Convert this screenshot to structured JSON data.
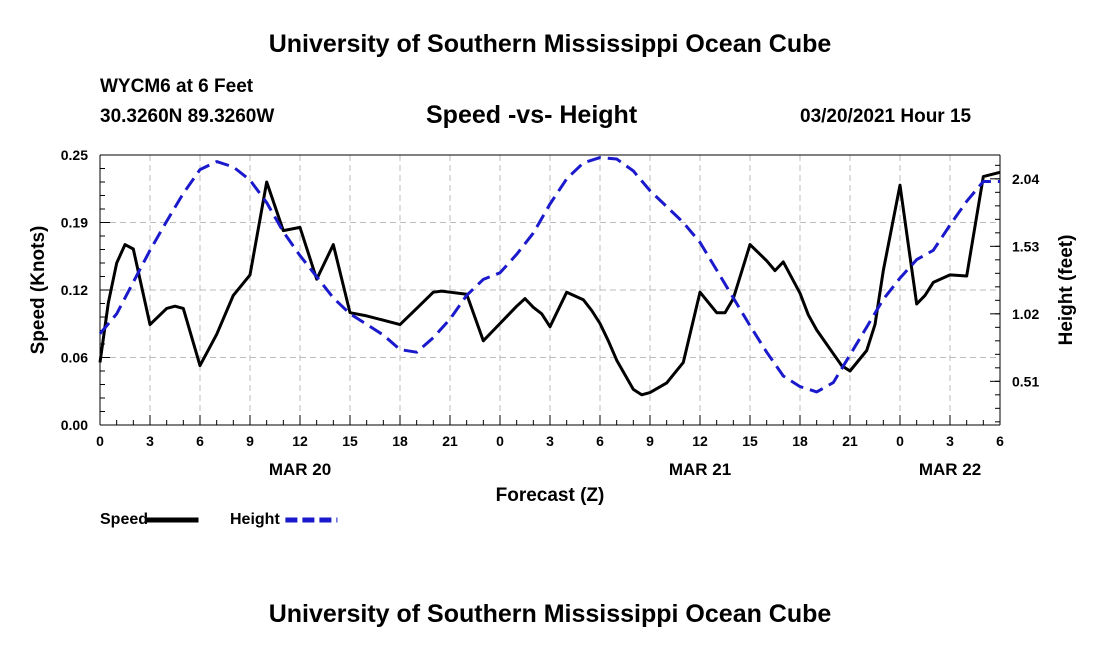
{
  "header": {
    "title": "University of Southern Mississippi Ocean Cube",
    "station": "WYCM6 at 6 Feet",
    "coords": "30.3260N 89.3260W",
    "datetime": "03/20/2021 Hour 15"
  },
  "footer": {
    "title": "University of Southern Mississippi Ocean Cube"
  },
  "chart_data": {
    "type": "line",
    "title": "Speed -vs- Height",
    "xlabel": "Forecast (Z)",
    "ylabel_left": "Speed (Knots)",
    "ylabel_right": "Height (feet)",
    "x_unit": "hours from MAR 20 00Z",
    "xlim": [
      0,
      54
    ],
    "ylim_left": [
      0,
      0.25
    ],
    "ylim_right": [
      0.18,
      2.22
    ],
    "x_tick_labels": [
      "0",
      "3",
      "6",
      "9",
      "12",
      "15",
      "18",
      "21",
      "0",
      "3",
      "6",
      "9",
      "12",
      "15",
      "18",
      "21",
      "0",
      "3",
      "6"
    ],
    "left_ticks": [
      "0.00",
      "0.06",
      "0.12",
      "0.19",
      "0.25"
    ],
    "left_tick_values": [
      0.0,
      0.0625,
      0.125,
      0.1875,
      0.25
    ],
    "right_ticks": [
      "0.51",
      "1.02",
      "1.53",
      "2.04"
    ],
    "right_tick_values": [
      0.51,
      1.02,
      1.53,
      2.04
    ],
    "dates": [
      {
        "label": "MAR 20",
        "x": 12
      },
      {
        "label": "MAR 21",
        "x": 36
      },
      {
        "label": "MAR 22",
        "x": 51
      }
    ],
    "grid": true,
    "legend": [
      {
        "name": "Speed",
        "color": "#000000",
        "style": "solid"
      },
      {
        "name": "Height",
        "color": "#1a1acc",
        "style": "dashed"
      }
    ],
    "series": [
      {
        "name": "Speed",
        "axis": "left",
        "color": "#000000",
        "style": "solid",
        "x": [
          0,
          0.5,
          1,
          1.5,
          2,
          3,
          4,
          4.5,
          5,
          6,
          7,
          8,
          9,
          10,
          11,
          12,
          13,
          14,
          15,
          16,
          17,
          18,
          19,
          20,
          20.5,
          21,
          22,
          23,
          24,
          25,
          25.5,
          26,
          26.5,
          27,
          28,
          29,
          29.5,
          30,
          30.5,
          31,
          32,
          32.5,
          33,
          34,
          35,
          36,
          37,
          37.5,
          38,
          39,
          40,
          40.5,
          41,
          42,
          42.5,
          43,
          44,
          44.5,
          45,
          46,
          46.5,
          47,
          48,
          48.5,
          49,
          49.5,
          50,
          51,
          52,
          53,
          54
        ],
        "values": [
          0.058,
          0.113,
          0.15,
          0.167,
          0.163,
          0.093,
          0.108,
          0.11,
          0.108,
          0.055,
          0.084,
          0.12,
          0.139,
          0.225,
          0.18,
          0.183,
          0.135,
          0.167,
          0.104,
          0.101,
          0.097,
          0.093,
          0.108,
          0.123,
          0.124,
          0.123,
          0.121,
          0.078,
          0.094,
          0.11,
          0.117,
          0.109,
          0.103,
          0.091,
          0.123,
          0.116,
          0.106,
          0.094,
          0.078,
          0.06,
          0.033,
          0.028,
          0.03,
          0.039,
          0.058,
          0.123,
          0.104,
          0.104,
          0.117,
          0.167,
          0.152,
          0.143,
          0.151,
          0.122,
          0.102,
          0.088,
          0.066,
          0.055,
          0.05,
          0.069,
          0.093,
          0.143,
          0.222,
          0.167,
          0.112,
          0.12,
          0.132,
          0.139,
          0.138,
          0.23,
          0.234
        ]
      },
      {
        "name": "Height",
        "axis": "right",
        "color": "#1a1acc",
        "style": "dashed",
        "x": [
          0,
          1,
          2,
          3,
          4,
          5,
          6,
          7,
          8,
          9,
          10,
          11,
          12,
          13,
          14,
          15,
          16,
          17,
          18,
          19,
          20,
          21,
          22,
          23,
          24,
          25,
          26,
          27,
          28,
          29,
          30,
          31,
          32,
          33,
          34,
          35,
          36,
          37,
          38,
          39,
          40,
          41,
          42,
          43,
          44,
          45,
          46,
          47,
          48,
          49,
          50,
          51,
          52,
          53,
          54
        ],
        "values": [
          0.87,
          1.02,
          1.26,
          1.5,
          1.72,
          1.93,
          2.11,
          2.17,
          2.13,
          2.03,
          1.86,
          1.64,
          1.46,
          1.3,
          1.14,
          1.02,
          0.94,
          0.86,
          0.75,
          0.73,
          0.84,
          0.98,
          1.16,
          1.28,
          1.33,
          1.47,
          1.63,
          1.85,
          2.04,
          2.16,
          2.2,
          2.19,
          2.1,
          1.95,
          1.83,
          1.71,
          1.56,
          1.35,
          1.14,
          0.93,
          0.73,
          0.55,
          0.47,
          0.43,
          0.5,
          0.71,
          0.92,
          1.13,
          1.29,
          1.43,
          1.5,
          1.69,
          1.87,
          2.02,
          2.02
        ]
      }
    ]
  }
}
